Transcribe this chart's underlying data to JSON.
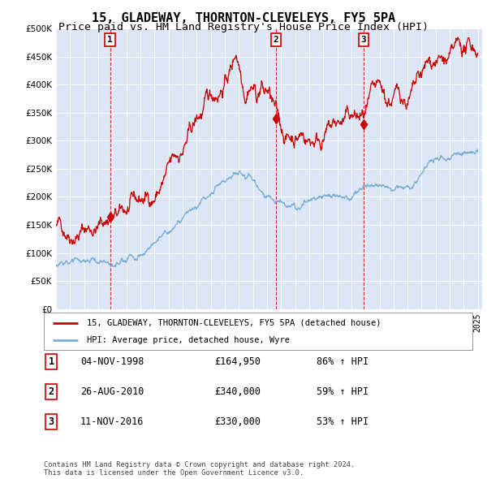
{
  "title": "15, GLADEWAY, THORNTON-CLEVELEYS, FY5 5PA",
  "subtitle": "Price paid vs. HM Land Registry's House Price Index (HPI)",
  "title_fontsize": 11,
  "subtitle_fontsize": 9.5,
  "plot_bg_color": "#dce6f5",
  "red_color": "#cc0000",
  "blue_color": "#7aadd4",
  "sale_dates": [
    1998.84,
    2010.65,
    2016.86
  ],
  "sale_prices": [
    164950,
    340000,
    330000
  ],
  "sale_labels": [
    "1",
    "2",
    "3"
  ],
  "legend_entries": [
    "15, GLADEWAY, THORNTON-CLEVELEYS, FY5 5PA (detached house)",
    "HPI: Average price, detached house, Wyre"
  ],
  "table_data": [
    [
      "1",
      "04-NOV-1998",
      "£164,950",
      "86% ↑ HPI"
    ],
    [
      "2",
      "26-AUG-2010",
      "£340,000",
      "59% ↑ HPI"
    ],
    [
      "3",
      "11-NOV-2016",
      "£330,000",
      "53% ↑ HPI"
    ]
  ],
  "footer": "Contains HM Land Registry data © Crown copyright and database right 2024.\nThis data is licensed under the Open Government Licence v3.0.",
  "ylim": [
    0,
    500000
  ],
  "yticks": [
    0,
    50000,
    100000,
    150000,
    200000,
    250000,
    300000,
    350000,
    400000,
    450000,
    500000
  ]
}
